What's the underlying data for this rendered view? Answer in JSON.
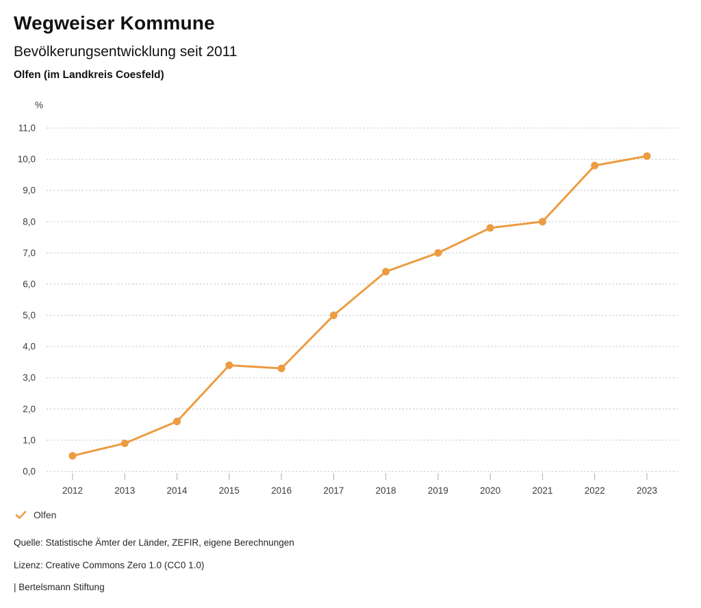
{
  "header": {
    "title": "Wegweiser Kommune",
    "subtitle": "Bevölkerungsentwicklung seit 2011",
    "location": "Olfen (im Landkreis Coesfeld)"
  },
  "chart_data": {
    "type": "line",
    "title": "Bevölkerungsentwicklung seit 2011",
    "subtitle": "Olfen (im Landkreis Coesfeld)",
    "unit_label": "%",
    "x": [
      "2012",
      "2013",
      "2014",
      "2015",
      "2016",
      "2017",
      "2018",
      "2019",
      "2020",
      "2021",
      "2022",
      "2023"
    ],
    "series": [
      {
        "name": "Olfen",
        "values": [
          0.5,
          0.9,
          1.6,
          3.4,
          3.3,
          5.0,
          6.4,
          7.0,
          7.8,
          8.0,
          9.8,
          10.1
        ]
      }
    ],
    "ylim": [
      0,
      11
    ],
    "ytick_step": 1,
    "ytick_labels": [
      "0,0",
      "1,0",
      "2,0",
      "3,0",
      "4,0",
      "5,0",
      "6,0",
      "7,0",
      "8,0",
      "9,0",
      "10,0",
      "11,0"
    ],
    "grid": "horizontal-dotted",
    "legend_position": "bottom-left"
  },
  "legend": {
    "items": [
      {
        "label": "Olfen",
        "icon": "check-icon"
      }
    ]
  },
  "footer": {
    "source": "Quelle: Statistische Ämter der Länder, ZEFIR, eigene Berechnungen",
    "license": "Lizenz: Creative Commons Zero 1.0 (CC0 1.0)",
    "attribution": "| Bertelsmann Stiftung"
  },
  "colors": {
    "accent": "#ED9B40",
    "grid": "#C9C9C9",
    "tick": "#ADADAD",
    "axis_text": "#3A3A3A",
    "text": "#262626"
  }
}
